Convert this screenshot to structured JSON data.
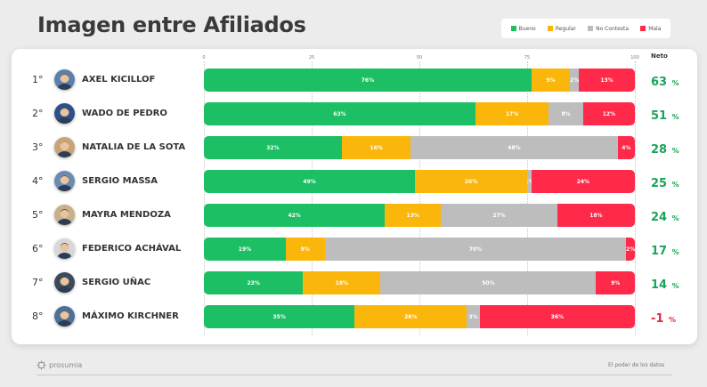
{
  "title": "Imagen entre Afiliados",
  "legend": [
    {
      "label": "Bueno",
      "color": "#1dbf64"
    },
    {
      "label": "Regular",
      "color": "#fbb60c"
    },
    {
      "label": "No Contesta",
      "color": "#bdbdbd"
    },
    {
      "label": "Mala",
      "color": "#ff2a4a"
    }
  ],
  "neto_header": "Neto",
  "footer": {
    "brand": "prosumia",
    "tagline": "El poder de los datos"
  },
  "chart_data": {
    "type": "bar",
    "orientation": "horizontal",
    "stacked": true,
    "xlim": [
      0,
      100
    ],
    "xticks": [
      "0",
      "25",
      "50",
      "75",
      "100"
    ],
    "series": [
      {
        "name": "Bueno",
        "color": "#1dbf64"
      },
      {
        "name": "Regular",
        "color": "#fbb60c"
      },
      {
        "name": "No Contesta",
        "color": "#bdbdbd"
      },
      {
        "name": "Mala",
        "color": "#ff2a4a"
      }
    ],
    "rows": [
      {
        "rank": "1°",
        "name": "AXEL KICILLOF",
        "values": [
          76,
          9,
          2,
          13
        ],
        "labels": [
          "76%",
          "9%",
          "2%",
          "13%"
        ],
        "neto": "63",
        "neto_pct": "%",
        "neto_color": "#1aa35a"
      },
      {
        "rank": "2°",
        "name": "WADO DE PEDRO",
        "values": [
          63,
          17,
          8,
          12
        ],
        "labels": [
          "63%",
          "17%",
          "8%",
          "12%"
        ],
        "neto": "51",
        "neto_pct": "%",
        "neto_color": "#1aa35a"
      },
      {
        "rank": "3°",
        "name": "NATALIA DE LA SOTA",
        "values": [
          32,
          16,
          48,
          4
        ],
        "labels": [
          "32%",
          "16%",
          "48%",
          "4%"
        ],
        "neto": "28",
        "neto_pct": "%",
        "neto_color": "#1aa35a"
      },
      {
        "rank": "4°",
        "name": "SERGIO MASSA",
        "values": [
          49,
          26,
          1,
          24
        ],
        "labels": [
          "49%",
          "26%",
          "1%",
          "24%"
        ],
        "neto": "25",
        "neto_pct": "%",
        "neto_color": "#1aa35a"
      },
      {
        "rank": "5°",
        "name": "MAYRA MENDOZA",
        "values": [
          42,
          13,
          27,
          18
        ],
        "labels": [
          "42%",
          "13%",
          "27%",
          "18%"
        ],
        "neto": "24",
        "neto_pct": "%",
        "neto_color": "#1aa35a"
      },
      {
        "rank": "6°",
        "name": "FEDERICO ACHÁVAL",
        "values": [
          19,
          9,
          70,
          2
        ],
        "labels": [
          "19%",
          "9%",
          "70%",
          "2%"
        ],
        "neto": "17",
        "neto_pct": "%",
        "neto_color": "#1aa35a"
      },
      {
        "rank": "7°",
        "name": "SERGIO UÑAC",
        "values": [
          23,
          18,
          50,
          9
        ],
        "labels": [
          "23%",
          "18%",
          "50%",
          "9%"
        ],
        "neto": "14",
        "neto_pct": "%",
        "neto_color": "#1aa35a"
      },
      {
        "rank": "8°",
        "name": "MÁXIMO KIRCHNER",
        "values": [
          35,
          26,
          3,
          36
        ],
        "labels": [
          "35%",
          "26%",
          "3%",
          "36%"
        ],
        "neto": "-1",
        "neto_pct": "%",
        "neto_color": "#e8283c"
      }
    ]
  }
}
